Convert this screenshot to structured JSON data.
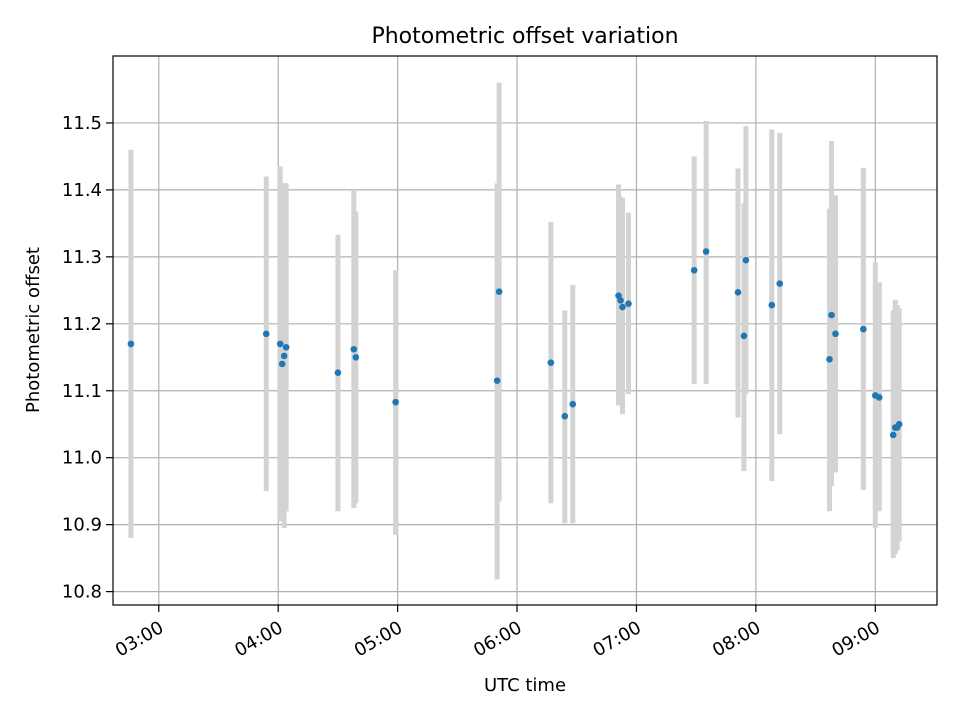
{
  "chart_data": {
    "type": "scatter",
    "title": "Photometric offset variation",
    "xlabel": "UTC time",
    "ylabel": "Photometric offset",
    "x_tick_labels": [
      "03:00",
      "04:00",
      "05:00",
      "06:00",
      "07:00",
      "08:00",
      "09:00"
    ],
    "x_ticks": [
      "03:00",
      "04:00",
      "05:00",
      "06:00",
      "07:00",
      "08:00",
      "09:00"
    ],
    "y_ticks": [
      10.8,
      10.9,
      11.0,
      11.1,
      11.2,
      11.3,
      11.4,
      11.5
    ],
    "y_tick_labels": [
      "10.8",
      "10.9",
      "11.0",
      "11.1",
      "11.2",
      "11.3",
      "11.4",
      "11.5"
    ],
    "xlim": [
      "02:37",
      "09:31"
    ],
    "ylim": [
      10.78,
      11.6
    ],
    "grid": true,
    "colors": {
      "points": "#1f77b4",
      "errorbars": "#d3d3d3",
      "grid": "#b0b0b0"
    },
    "points": [
      {
        "x": "02:46",
        "y": 11.17,
        "ylo": 10.88,
        "yhi": 11.46
      },
      {
        "x": "03:54",
        "y": 11.185,
        "ylo": 10.95,
        "yhi": 11.42
      },
      {
        "x": "04:01",
        "y": 11.17,
        "ylo": 10.905,
        "yhi": 11.435
      },
      {
        "x": "04:02",
        "y": 11.14,
        "ylo": 10.91,
        "yhi": 11.37
      },
      {
        "x": "04:03",
        "y": 11.152,
        "ylo": 10.895,
        "yhi": 11.41
      },
      {
        "x": "04:04",
        "y": 11.165,
        "ylo": 10.92,
        "yhi": 11.41
      },
      {
        "x": "04:30",
        "y": 11.127,
        "ylo": 10.92,
        "yhi": 11.333
      },
      {
        "x": "04:38",
        "y": 11.162,
        "ylo": 10.925,
        "yhi": 11.4
      },
      {
        "x": "04:39",
        "y": 11.15,
        "ylo": 10.932,
        "yhi": 11.368
      },
      {
        "x": "04:59",
        "y": 11.083,
        "ylo": 10.885,
        "yhi": 11.28
      },
      {
        "x": "05:50",
        "y": 11.115,
        "ylo": 10.818,
        "yhi": 11.41
      },
      {
        "x": "05:51",
        "y": 11.248,
        "ylo": 10.935,
        "yhi": 11.56
      },
      {
        "x": "06:17",
        "y": 11.142,
        "ylo": 10.932,
        "yhi": 11.352
      },
      {
        "x": "06:24",
        "y": 11.062,
        "ylo": 10.902,
        "yhi": 11.22
      },
      {
        "x": "06:28",
        "y": 11.08,
        "ylo": 10.902,
        "yhi": 11.258
      },
      {
        "x": "06:51",
        "y": 11.242,
        "ylo": 11.078,
        "yhi": 11.408
      },
      {
        "x": "06:52",
        "y": 11.235,
        "ylo": 11.082,
        "yhi": 11.39
      },
      {
        "x": "06:53",
        "y": 11.225,
        "ylo": 11.065,
        "yhi": 11.388
      },
      {
        "x": "06:56",
        "y": 11.23,
        "ylo": 11.095,
        "yhi": 11.366
      },
      {
        "x": "07:29",
        "y": 11.28,
        "ylo": 11.11,
        "yhi": 11.45
      },
      {
        "x": "07:35",
        "y": 11.308,
        "ylo": 11.11,
        "yhi": 11.503
      },
      {
        "x": "07:51",
        "y": 11.247,
        "ylo": 11.06,
        "yhi": 11.432
      },
      {
        "x": "07:54",
        "y": 11.182,
        "ylo": 10.98,
        "yhi": 11.38
      },
      {
        "x": "07:55",
        "y": 11.295,
        "ylo": 11.095,
        "yhi": 11.495
      },
      {
        "x": "08:08",
        "y": 11.228,
        "ylo": 10.965,
        "yhi": 11.49
      },
      {
        "x": "08:12",
        "y": 11.26,
        "ylo": 11.035,
        "yhi": 11.485
      },
      {
        "x": "08:37",
        "y": 11.147,
        "ylo": 10.92,
        "yhi": 11.372
      },
      {
        "x": "08:38",
        "y": 11.213,
        "ylo": 10.958,
        "yhi": 11.473
      },
      {
        "x": "08:40",
        "y": 11.185,
        "ylo": 10.978,
        "yhi": 11.392
      },
      {
        "x": "08:54",
        "y": 11.192,
        "ylo": 10.952,
        "yhi": 11.433
      },
      {
        "x": "09:00",
        "y": 11.093,
        "ylo": 10.895,
        "yhi": 11.292
      },
      {
        "x": "09:02",
        "y": 11.09,
        "ylo": 10.92,
        "yhi": 11.262
      },
      {
        "x": "09:09",
        "y": 11.034,
        "ylo": 10.85,
        "yhi": 11.22
      },
      {
        "x": "09:10",
        "y": 11.045,
        "ylo": 10.856,
        "yhi": 11.236
      },
      {
        "x": "09:11",
        "y": 11.045,
        "ylo": 10.862,
        "yhi": 11.228
      },
      {
        "x": "09:12",
        "y": 11.05,
        "ylo": 10.875,
        "yhi": 11.223
      }
    ]
  }
}
